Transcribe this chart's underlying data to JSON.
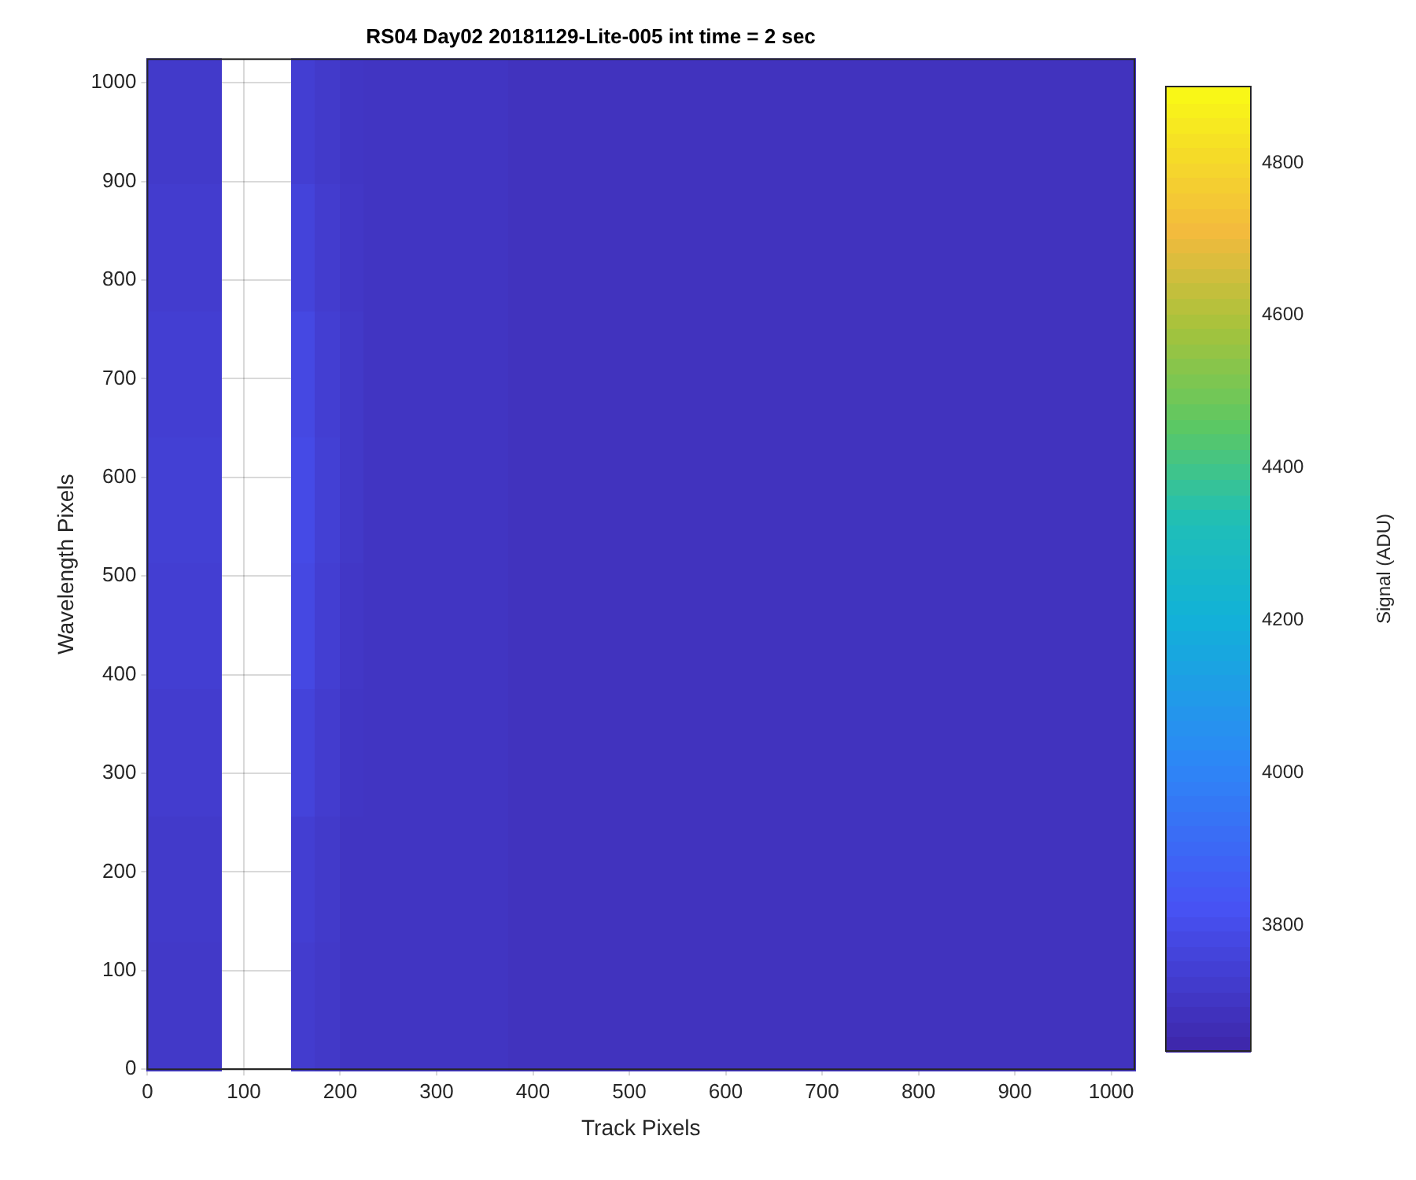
{
  "chart_data": {
    "type": "heatmap",
    "title": "RS04 Day02 20181129-Lite-005 int time = 2 sec",
    "xlabel": "Track Pixels",
    "ylabel": "Wavelength Pixels",
    "clabel": "Signal (ADU)",
    "xlim": [
      0,
      1024
    ],
    "ylim": [
      0,
      1024
    ],
    "xticks": [
      0,
      100,
      200,
      300,
      400,
      500,
      600,
      700,
      800,
      900,
      1000
    ],
    "yticks": [
      0,
      100,
      200,
      300,
      400,
      500,
      600,
      700,
      800,
      900,
      1000
    ],
    "clim": [
      3635,
      4900
    ],
    "cticks": [
      3800,
      4000,
      4200,
      4400,
      4600,
      4800
    ],
    "grid": true,
    "x": [
      12.5,
      37.5,
      62.5,
      87.5,
      112.5,
      137.5,
      162.5,
      187.5,
      212.5,
      237.5,
      262.5,
      287.5,
      312.5,
      337.5,
      362.5,
      387.5,
      412.5,
      437.5,
      462.5,
      487.5,
      512.5,
      537.5,
      562.5,
      587.5,
      612.5,
      637.5,
      662.5,
      687.5,
      712.5,
      737.5,
      762.5,
      787.5,
      812.5,
      837.5,
      862.5,
      887.5,
      912.5,
      937.5,
      962.5,
      987.5,
      1012
    ],
    "y": [
      960,
      832,
      704,
      576,
      448,
      320,
      192,
      64
    ],
    "cells": [
      [
        3720,
        3720,
        3720,
        null,
        null,
        null,
        3740,
        3720,
        3705,
        3700,
        3700,
        3700,
        3700,
        3700,
        3700,
        3690,
        3690,
        3690,
        3690,
        3690,
        3690,
        3690,
        3690,
        3690,
        3690,
        3690,
        3690,
        3690,
        3690,
        3690,
        3690,
        3690,
        3690,
        3690,
        3690,
        3690,
        3690,
        3690,
        3690,
        3690,
        3690
      ],
      [
        3730,
        3730,
        3730,
        null,
        null,
        null,
        3760,
        3730,
        3710,
        3700,
        3700,
        3700,
        3700,
        3700,
        3700,
        3690,
        3690,
        3690,
        3690,
        3690,
        3690,
        3690,
        3690,
        3690,
        3690,
        3690,
        3690,
        3690,
        3690,
        3690,
        3690,
        3690,
        3690,
        3690,
        3690,
        3690,
        3690,
        3690,
        3690,
        3690,
        3690
      ],
      [
        3740,
        3740,
        3740,
        null,
        null,
        null,
        3780,
        3740,
        3715,
        3700,
        3700,
        3700,
        3700,
        3700,
        3700,
        3690,
        3690,
        3690,
        3690,
        3690,
        3690,
        3690,
        3690,
        3690,
        3690,
        3690,
        3690,
        3690,
        3690,
        3690,
        3690,
        3690,
        3690,
        3690,
        3690,
        3690,
        3690,
        3690,
        3690,
        3690,
        3690
      ],
      [
        3745,
        3745,
        3745,
        null,
        null,
        null,
        3790,
        3745,
        3715,
        3700,
        3700,
        3700,
        3700,
        3700,
        3700,
        3690,
        3690,
        3690,
        3690,
        3690,
        3690,
        3690,
        3690,
        3690,
        3690,
        3690,
        3690,
        3690,
        3690,
        3690,
        3690,
        3690,
        3690,
        3690,
        3690,
        3690,
        3690,
        3690,
        3690,
        3690,
        3690
      ],
      [
        3740,
        3740,
        3740,
        null,
        null,
        null,
        3780,
        3740,
        3710,
        3700,
        3700,
        3700,
        3700,
        3700,
        3700,
        3690,
        3690,
        3690,
        3690,
        3690,
        3690,
        3690,
        3690,
        3690,
        3690,
        3690,
        3690,
        3690,
        3690,
        3690,
        3690,
        3690,
        3690,
        3690,
        3690,
        3690,
        3690,
        3690,
        3690,
        3690,
        3690
      ],
      [
        3730,
        3730,
        3730,
        null,
        null,
        null,
        3760,
        3730,
        3705,
        3700,
        3700,
        3700,
        3700,
        3700,
        3700,
        3690,
        3690,
        3690,
        3690,
        3690,
        3690,
        3690,
        3690,
        3690,
        3690,
        3690,
        3690,
        3690,
        3690,
        3690,
        3690,
        3690,
        3690,
        3690,
        3690,
        3690,
        3690,
        3690,
        3690,
        3690,
        3690
      ],
      [
        3720,
        3720,
        3720,
        null,
        null,
        null,
        3740,
        3720,
        3700,
        3700,
        3700,
        3700,
        3700,
        3700,
        3700,
        3690,
        3690,
        3690,
        3690,
        3690,
        3690,
        3690,
        3690,
        3690,
        3690,
        3690,
        3690,
        3690,
        3690,
        3690,
        3690,
        3690,
        3690,
        3690,
        3690,
        3690,
        3690,
        3690,
        3690,
        3690,
        3690
      ],
      [
        3715,
        3715,
        3715,
        null,
        null,
        null,
        3730,
        3715,
        3700,
        3700,
        3700,
        3700,
        3700,
        3700,
        3700,
        3690,
        3690,
        3690,
        3690,
        3690,
        3690,
        3690,
        3690,
        3690,
        3690,
        3690,
        3690,
        3690,
        3690,
        3690,
        3690,
        3690,
        3690,
        3690,
        3690,
        3690,
        3690,
        3690,
        3690,
        3690,
        3690
      ]
    ]
  }
}
